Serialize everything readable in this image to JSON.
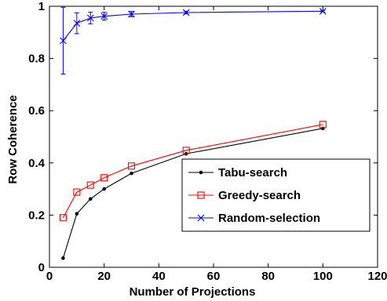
{
  "chart_data": {
    "type": "line",
    "xlabel": "Number of Projections",
    "ylabel": "Row Coherence",
    "xlim": [
      0,
      120
    ],
    "ylim": [
      0,
      1
    ],
    "xticks": [
      0,
      20,
      40,
      60,
      80,
      100,
      120
    ],
    "yticks": [
      0,
      0.2,
      0.4,
      0.6,
      0.8,
      1
    ],
    "xtick_labels": [
      "0",
      "20",
      "40",
      "60",
      "80",
      "100",
      "120"
    ],
    "ytick_labels": [
      "0",
      "0.2",
      "0.4",
      "0.6",
      "0.8",
      "1"
    ],
    "grid": false,
    "legend_position": "lower-right",
    "series": [
      {
        "name": "Tabu-search",
        "color": "#000000",
        "marker": "dot",
        "x": [
          5,
          10,
          15,
          20,
          30,
          50,
          100
        ],
        "y": [
          0.035,
          0.205,
          0.262,
          0.3,
          0.36,
          0.435,
          0.532
        ]
      },
      {
        "name": "Greedy-search",
        "color": "#ff0000",
        "marker": "square",
        "x": [
          5,
          10,
          15,
          20,
          30,
          50,
          100
        ],
        "y": [
          0.19,
          0.288,
          0.315,
          0.343,
          0.388,
          0.448,
          0.547
        ]
      },
      {
        "name": "Random-selection",
        "color": "#0000ff",
        "marker": "x",
        "x": [
          5,
          10,
          15,
          20,
          30,
          50,
          100
        ],
        "y": [
          0.868,
          0.935,
          0.955,
          0.962,
          0.97,
          0.976,
          0.981
        ],
        "error": [
          0.128,
          0.04,
          0.022,
          0.015,
          0.01,
          0.005,
          0.003
        ]
      }
    ]
  }
}
